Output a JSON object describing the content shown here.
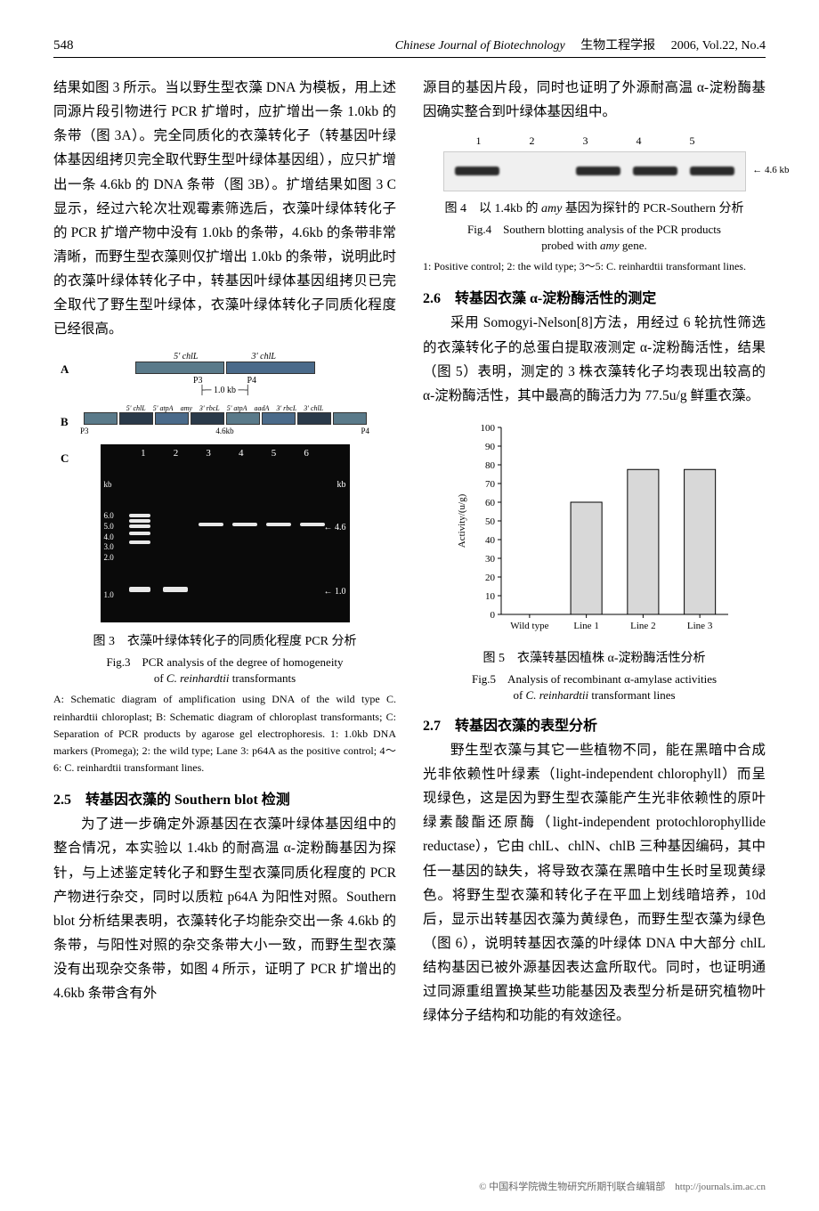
{
  "header": {
    "page_num": "548",
    "journal_en": "Chinese Journal of Biotechnology",
    "journal_cn": "生物工程学报",
    "issue": "2006, Vol.22, No.4"
  },
  "left_col": {
    "para1": "结果如图 3 所示。当以野生型衣藻 DNA 为模板，用上述同源片段引物进行 PCR 扩增时，应扩增出一条 1.0kb 的条带（图 3A）。完全同质化的衣藻转化子（转基因叶绿体基因组拷贝完全取代野生型叶绿体基因组），应只扩增出一条 4.6kb 的 DNA 条带（图 3B）。扩增结果如图 3 C 显示，经过六轮次壮观霉素筛选后，衣藻叶绿体转化子的 PCR 扩增产物中没有 1.0kb 的条带，4.6kb 的条带非常清晰，而野生型衣藻则仅扩增出 1.0kb 的条带，说明此时的衣藻叶绿体转化子中，转基因叶绿体基因组拷贝已完全取代了野生型叶绿体，衣藻叶绿体转化子同质化程度已经很高。",
    "fig3": {
      "diag_a_labels": [
        "5' chlL",
        "3' chlL"
      ],
      "diag_a_p": [
        "P3",
        "P4"
      ],
      "diag_a_size": "1.0 kb",
      "diag_b_labels": [
        "5' chlL",
        "5' atpA",
        "amy",
        "3' rbcL",
        "5' atpA",
        "aadA",
        "3' rbcL",
        "3' chlL"
      ],
      "diag_b_size": "4.6kb",
      "lanes": [
        "1",
        "2",
        "3",
        "4",
        "5",
        "6"
      ],
      "kb_left_label": "kb",
      "kb_left": [
        "6.0",
        "5.0",
        "4.0",
        "3.0",
        "2.0",
        "1.0"
      ],
      "kb_right_label": "kb",
      "kb_right_46": "4.6",
      "kb_right_10": "1.0",
      "caption_cn": "图 3　衣藻叶绿体转化子的同质化程度 PCR 分析",
      "caption_en1": "Fig.3　PCR analysis of the degree of homogeneity",
      "caption_en2": "of C. reinhardtii transformants",
      "note": "A: Schematic diagram of amplification using DNA of the wild type C. reinhardtii chloroplast; B: Schematic diagram of chloroplast transformants; C: Separation of PCR products by agarose gel electrophoresis. 1: 1.0kb DNA markers (Promega); 2: the wild type; Lane 3: p64A as the positive control; 4～6: C. reinhardtii transformant lines."
    },
    "sec25_title": "2.5　转基因衣藻的 Southern blot 检测",
    "sec25_text": "为了进一步确定外源基因在衣藻叶绿体基因组中的整合情况，本实验以 1.4kb 的耐高温 α-淀粉酶基因为探针，与上述鉴定转化子和野生型衣藻同质化程度的 PCR 产物进行杂交，同时以质粒 p64A 为阳性对照。Southern blot 分析结果表明，衣藻转化子均能杂交出一条 4.6kb 的条带，与阳性对照的杂交条带大小一致，而野生型衣藻没有出现杂交条带，如图 4 所示，证明了 PCR 扩增出的 4.6kb 条带含有外"
  },
  "right_col": {
    "para_top": "源目的基因片段，同时也证明了外源耐高温 α-淀粉酶基因确实整合到叶绿体基因组中。",
    "fig4": {
      "lanes": [
        "1",
        "2",
        "3",
        "4",
        "5"
      ],
      "band_label": "4.6 kb",
      "caption_cn": "图 4　以 1.4kb 的 amy 基因为探针的 PCR-Southern 分析",
      "caption_en1": "Fig.4　Southern blotting analysis of the PCR products",
      "caption_en2": "probed with amy gene.",
      "note": "1: Positive control; 2: the wild type; 3～5: C. reinhardtii transformant lines."
    },
    "sec26_title": "2.6　转基因衣藻 α-淀粉酶活性的测定",
    "sec26_text": "采用 Somogyi-Nelson[8]方法，用经过 6 轮抗性筛选的衣藻转化子的总蛋白提取液测定 α-淀粉酶活性，结果（图 5）表明，测定的 3 株衣藻转化子均表现出较高的 α-淀粉酶活性，其中最高的酶活力为 77.5u/g 鲜重衣藻。",
    "fig5": {
      "type": "bar",
      "categories": [
        "Wild type",
        "Line 1",
        "Line 2",
        "Line 3"
      ],
      "values": [
        0,
        60,
        77.5,
        77.5
      ],
      "bar_color": "#d8d8d8",
      "bar_border": "#000000",
      "ylabel": "Activity/(u/g)",
      "ylim": [
        0,
        100
      ],
      "ytick_step": 10,
      "yticks": [
        0,
        10,
        20,
        30,
        40,
        50,
        60,
        70,
        80,
        90,
        100
      ],
      "background_color": "#ffffff",
      "bar_width_ratio": 0.55,
      "axis_color": "#000000",
      "tick_fontsize": 11,
      "label_fontsize": 11,
      "caption_cn": "图 5　衣藻转基因植株 α-淀粉酶活性分析",
      "caption_en1": "Fig.5　Analysis of recombinant α-amylase activities",
      "caption_en2": "of C. reinhardtii transformant lines"
    },
    "sec27_title": "2.7　转基因衣藻的表型分析",
    "sec27_text": "野生型衣藻与其它一些植物不同，能在黑暗中合成光非依赖性叶绿素（light-independent chlorophyll）而呈现绿色，这是因为野生型衣藻能产生光非依赖性的原叶绿素酸酯还原酶（light-independent protochlorophyllide reductase），它由 chlL、chlN、chlB 三种基因编码，其中任一基因的缺失，将导致衣藻在黑暗中生长时呈现黄绿色。将野生型衣藻和转化子在平皿上划线暗培养，10d 后，显示出转基因衣藻为黄绿色，而野生型衣藻为绿色（图 6），说明转基因衣藻的叶绿体 DNA 中大部分 chlL 结构基因已被外源基因表达盒所取代。同时，也证明通过同源重组置换某些功能基因及表型分析是研究植物叶绿体分子结构和功能的有效途径。"
  },
  "footer": "© 中国科学院微生物研究所期刊联合编辑部　http://journals.im.ac.cn"
}
